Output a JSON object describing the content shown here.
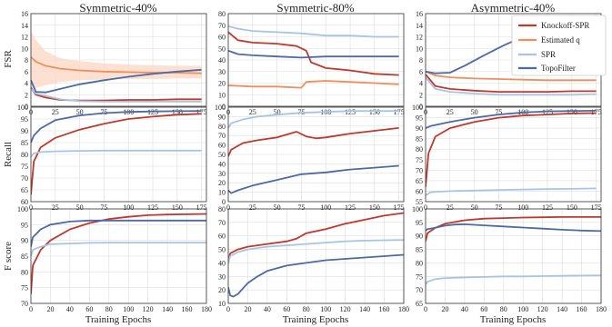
{
  "figure": {
    "column_titles": [
      "Symmetric-40%",
      "Symmetric-80%",
      "Asymmetric-40%"
    ],
    "row_labels": [
      "FSR",
      "Recall",
      "F score"
    ],
    "x_label": "Training Epochs"
  },
  "legend": [
    {
      "name": "Knockoff-SPR",
      "color": "#c0392b"
    },
    {
      "name": "Estimated q",
      "color": "#f28e5b"
    },
    {
      "name": "SPR",
      "color": "#a7c5e3"
    },
    {
      "name": "TopoFilter",
      "color": "#4c6aa5"
    }
  ],
  "colors": {
    "band": "#fbd7c4",
    "grid": "#dddddd"
  },
  "chart_data": [
    {
      "type": "line",
      "row": 0,
      "col": 0,
      "xlim": [
        0,
        180
      ],
      "ylim": [
        0,
        16
      ],
      "xticks": [
        0,
        25,
        50,
        75,
        100,
        125,
        150,
        175
      ],
      "yticks": [
        0,
        2,
        4,
        6,
        8,
        10,
        12,
        14,
        16
      ],
      "series": [
        {
          "name": "Knockoff-SPR",
          "x": [
            0,
            5,
            15,
            30,
            50,
            75,
            100,
            125,
            150,
            175
          ],
          "y": [
            3.2,
            2.0,
            1.5,
            1.1,
            1.0,
            1.0,
            1.1,
            1.1,
            1.2,
            1.2
          ]
        },
        {
          "name": "Estimated q",
          "x": [
            0,
            5,
            15,
            30,
            50,
            75,
            100,
            125,
            150,
            175
          ],
          "y": [
            8.5,
            7.7,
            7.0,
            6.5,
            6.2,
            6.0,
            5.9,
            5.8,
            5.8,
            5.7
          ],
          "band_lo": [
            3,
            3.2,
            3.6,
            4.2,
            4.5,
            4.6,
            4.7,
            4.7,
            4.8,
            4.8
          ],
          "band_hi": [
            13,
            11.5,
            9.5,
            8.3,
            7.8,
            7.4,
            7.2,
            7.1,
            7.0,
            7.0
          ]
        },
        {
          "name": "SPR",
          "x": [
            0,
            5,
            15,
            30,
            50,
            75,
            100,
            125,
            150,
            175
          ],
          "y": [
            3.0,
            2.2,
            1.8,
            1.2,
            0.9,
            0.8,
            0.8,
            0.8,
            0.8,
            0.8
          ]
        },
        {
          "name": "TopoFilter",
          "x": [
            0,
            5,
            15,
            30,
            50,
            75,
            100,
            125,
            150,
            175
          ],
          "y": [
            4.5,
            2.5,
            2.4,
            3.0,
            3.8,
            4.5,
            5.1,
            5.6,
            6.0,
            6.3
          ]
        }
      ]
    },
    {
      "type": "line",
      "row": 0,
      "col": 1,
      "xlim": [
        0,
        180
      ],
      "ylim": [
        0,
        80
      ],
      "xticks": [
        0,
        25,
        50,
        75,
        100,
        125,
        150,
        175
      ],
      "yticks": [
        0,
        10,
        20,
        30,
        40,
        50,
        60,
        70,
        80
      ],
      "series": [
        {
          "name": "Knockoff-SPR",
          "x": [
            0,
            10,
            25,
            50,
            70,
            80,
            85,
            100,
            125,
            150,
            175
          ],
          "y": [
            64,
            57,
            55,
            54,
            52,
            48,
            38,
            33,
            31,
            28,
            27
          ]
        },
        {
          "name": "Estimated q",
          "x": [
            0,
            25,
            50,
            75,
            80,
            100,
            125,
            150,
            175
          ],
          "y": [
            18,
            17,
            17,
            16,
            21,
            22,
            21,
            20,
            19
          ]
        },
        {
          "name": "SPR",
          "x": [
            0,
            10,
            25,
            50,
            75,
            100,
            125,
            150,
            175
          ],
          "y": [
            69,
            67,
            65,
            64,
            63,
            61,
            61,
            60,
            60
          ]
        },
        {
          "name": "TopoFilter",
          "x": [
            0,
            10,
            25,
            50,
            75,
            100,
            125,
            150,
            175
          ],
          "y": [
            48,
            45,
            44,
            43,
            42,
            43,
            43,
            43,
            43
          ]
        }
      ]
    },
    {
      "type": "line",
      "row": 0,
      "col": 2,
      "xlim": [
        0,
        180
      ],
      "ylim": [
        0,
        16
      ],
      "xticks": [
        0,
        25,
        50,
        75,
        100,
        125,
        150,
        175
      ],
      "yticks": [
        0,
        2,
        4,
        6,
        8,
        10,
        12,
        14,
        16
      ],
      "series": [
        {
          "name": "Knockoff-SPR",
          "x": [
            0,
            10,
            25,
            50,
            75,
            100,
            125,
            150,
            175
          ],
          "y": [
            5.5,
            3.5,
            3.0,
            2.7,
            2.5,
            2.5,
            2.5,
            2.6,
            2.6
          ]
        },
        {
          "name": "Estimated q",
          "x": [
            0,
            10,
            25,
            50,
            75,
            100,
            125,
            150,
            175
          ],
          "y": [
            6.0,
            5.3,
            5.0,
            4.8,
            4.7,
            4.6,
            4.5,
            4.5,
            4.5
          ]
        },
        {
          "name": "SPR",
          "x": [
            0,
            10,
            25,
            50,
            75,
            100,
            125,
            150,
            175
          ],
          "y": [
            5.0,
            3.0,
            2.5,
            2.2,
            2.0,
            2.0,
            2.0,
            2.0,
            2.1
          ]
        },
        {
          "name": "TopoFilter",
          "x": [
            0,
            10,
            25,
            40,
            60,
            80,
            100,
            125,
            150,
            175
          ],
          "y": [
            6.0,
            5.7,
            5.8,
            7.0,
            8.8,
            10.5,
            12.0,
            13.5,
            14.5,
            15.2
          ]
        }
      ]
    },
    {
      "type": "line",
      "row": 1,
      "col": 0,
      "xlim": [
        0,
        180
      ],
      "ylim": [
        60,
        100
      ],
      "xticks": [
        0,
        25,
        50,
        75,
        100,
        125,
        150,
        175
      ],
      "yticks": [
        60,
        65,
        70,
        75,
        80,
        85,
        90,
        95,
        100
      ],
      "series": [
        {
          "name": "Knockoff-SPR",
          "x": [
            0,
            3,
            10,
            25,
            50,
            75,
            100,
            125,
            150,
            175
          ],
          "y": [
            63,
            77,
            83,
            87,
            90.5,
            93,
            95,
            96,
            96.8,
            97.2
          ]
        },
        {
          "name": "SPR",
          "x": [
            0,
            3,
            10,
            25,
            50,
            75,
            100,
            125,
            150,
            175
          ],
          "y": [
            79,
            80.5,
            81,
            81.3,
            81.5,
            81.6,
            81.6,
            81.6,
            81.6,
            81.6
          ]
        },
        {
          "name": "TopoFilter",
          "x": [
            0,
            3,
            10,
            25,
            50,
            75,
            100,
            125,
            150,
            175
          ],
          "y": [
            85,
            88,
            91,
            94.5,
            96.5,
            97.5,
            98,
            98.2,
            98.3,
            98.4
          ]
        }
      ]
    },
    {
      "type": "line",
      "row": 1,
      "col": 1,
      "xlim": [
        0,
        180
      ],
      "ylim": [
        0,
        100
      ],
      "xticks": [
        0,
        25,
        50,
        75,
        100,
        125,
        150,
        175
      ],
      "yticks": [
        0,
        10,
        20,
        30,
        40,
        50,
        60,
        70,
        80,
        90,
        100
      ],
      "series": [
        {
          "name": "Knockoff-SPR",
          "x": [
            0,
            3,
            15,
            30,
            50,
            70,
            80,
            90,
            100,
            125,
            150,
            175
          ],
          "y": [
            48,
            55,
            62,
            65,
            68,
            74,
            69,
            67,
            68,
            72,
            75,
            78
          ]
        },
        {
          "name": "SPR",
          "x": [
            0,
            3,
            15,
            30,
            50,
            75,
            100,
            125,
            150,
            175
          ],
          "y": [
            78,
            83,
            87,
            90,
            92,
            94,
            95,
            96,
            96,
            96
          ]
        },
        {
          "name": "TopoFilter",
          "x": [
            0,
            3,
            10,
            25,
            50,
            75,
            100,
            125,
            150,
            175
          ],
          "y": [
            12,
            9,
            12,
            17,
            23,
            29,
            31,
            34,
            36,
            38
          ]
        }
      ]
    },
    {
      "type": "line",
      "row": 1,
      "col": 2,
      "xlim": [
        0,
        180
      ],
      "ylim": [
        55,
        100
      ],
      "xticks": [
        0,
        25,
        50,
        75,
        100,
        125,
        150,
        175
      ],
      "yticks": [
        55,
        60,
        65,
        70,
        75,
        80,
        85,
        90,
        95,
        100
      ],
      "series": [
        {
          "name": "Knockoff-SPR",
          "x": [
            0,
            3,
            10,
            25,
            50,
            75,
            100,
            125,
            150,
            175
          ],
          "y": [
            62,
            78,
            86,
            90,
            93,
            95,
            96,
            96.5,
            97,
            97.2
          ]
        },
        {
          "name": "SPR",
          "x": [
            0,
            5,
            25,
            50,
            75,
            100,
            125,
            150,
            175
          ],
          "y": [
            58,
            59.5,
            60,
            60.3,
            60.6,
            60.8,
            61,
            61.1,
            61.3
          ]
        },
        {
          "name": "TopoFilter",
          "x": [
            0,
            5,
            25,
            50,
            75,
            100,
            125,
            150,
            175
          ],
          "y": [
            90,
            91,
            93,
            95,
            96.5,
            97.5,
            98,
            98.2,
            98.3
          ]
        }
      ]
    },
    {
      "type": "line",
      "row": 2,
      "col": 0,
      "xlim": [
        0,
        180
      ],
      "ylim": [
        70,
        100
      ],
      "xticks": [
        0,
        20,
        40,
        60,
        80,
        100,
        120,
        140,
        160,
        180
      ],
      "yticks": [
        70,
        75,
        80,
        85,
        90,
        95,
        100
      ],
      "series": [
        {
          "name": "Knockoff-SPR",
          "x": [
            0,
            2,
            10,
            20,
            40,
            60,
            80,
            100,
            120,
            140,
            160,
            180
          ],
          "y": [
            73,
            82,
            87,
            90,
            93.5,
            95.5,
            96.8,
            97.5,
            98,
            98.2,
            98.3,
            98.4
          ]
        },
        {
          "name": "SPR",
          "x": [
            0,
            2,
            10,
            20,
            40,
            60,
            80,
            100,
            120,
            140,
            160,
            180
          ],
          "y": [
            85,
            87,
            88,
            88.8,
            89,
            89.2,
            89.3,
            89.3,
            89.3,
            89.3,
            89.3,
            89.3
          ]
        },
        {
          "name": "TopoFilter",
          "x": [
            0,
            2,
            10,
            20,
            40,
            60,
            80,
            100,
            120,
            140,
            160,
            180
          ],
          "y": [
            88,
            91,
            93.5,
            95,
            96,
            96.3,
            96.3,
            96.3,
            96.3,
            96.3,
            96.3,
            96.3
          ]
        }
      ]
    },
    {
      "type": "line",
      "row": 2,
      "col": 1,
      "xlim": [
        0,
        180
      ],
      "ylim": [
        10,
        80
      ],
      "xticks": [
        0,
        20,
        40,
        60,
        80,
        100,
        120,
        140,
        160,
        180
      ],
      "yticks": [
        10,
        20,
        30,
        40,
        50,
        60,
        70,
        80
      ],
      "series": [
        {
          "name": "Knockoff-SPR",
          "x": [
            0,
            2,
            10,
            20,
            40,
            60,
            70,
            80,
            100,
            120,
            140,
            160,
            180
          ],
          "y": [
            40,
            47,
            50,
            52,
            54,
            56,
            58,
            62,
            65,
            69,
            72,
            75,
            77
          ]
        },
        {
          "name": "SPR",
          "x": [
            0,
            2,
            10,
            20,
            40,
            60,
            80,
            100,
            120,
            140,
            160,
            180
          ],
          "y": [
            40,
            45,
            48,
            50,
            52,
            53,
            54,
            55,
            56,
            56.5,
            56.8,
            57
          ]
        },
        {
          "name": "TopoFilter",
          "x": [
            0,
            2,
            5,
            10,
            20,
            30,
            40,
            60,
            80,
            100,
            120,
            140,
            160,
            180
          ],
          "y": [
            22,
            16,
            15,
            17,
            25,
            30,
            34,
            38,
            40,
            42,
            43,
            44,
            45,
            46
          ]
        }
      ]
    },
    {
      "type": "line",
      "row": 2,
      "col": 2,
      "xlim": [
        0,
        180
      ],
      "ylim": [
        65,
        100
      ],
      "xticks": [
        0,
        20,
        40,
        60,
        80,
        100,
        120,
        140,
        160,
        180
      ],
      "yticks": [
        65,
        70,
        75,
        80,
        85,
        90,
        95,
        100
      ],
      "series": [
        {
          "name": "Knockoff-SPR",
          "x": [
            0,
            2,
            10,
            20,
            40,
            60,
            80,
            100,
            120,
            140,
            160,
            180
          ],
          "y": [
            88,
            91,
            93,
            94.5,
            95.8,
            96.4,
            96.6,
            96.8,
            96.9,
            97,
            97,
            97
          ]
        },
        {
          "name": "SPR",
          "x": [
            0,
            2,
            10,
            20,
            40,
            60,
            80,
            100,
            120,
            140,
            160,
            180
          ],
          "y": [
            72,
            73,
            74,
            74.4,
            74.6,
            74.8,
            75,
            75,
            75.1,
            75.2,
            75.3,
            75.4
          ]
        },
        {
          "name": "TopoFilter",
          "x": [
            0,
            2,
            10,
            20,
            30,
            40,
            60,
            80,
            100,
            120,
            140,
            160,
            180
          ],
          "y": [
            92,
            92.5,
            93,
            93.8,
            94.2,
            94.3,
            93.9,
            93.5,
            93.1,
            92.7,
            92.3,
            92,
            91.8
          ]
        }
      ]
    }
  ]
}
